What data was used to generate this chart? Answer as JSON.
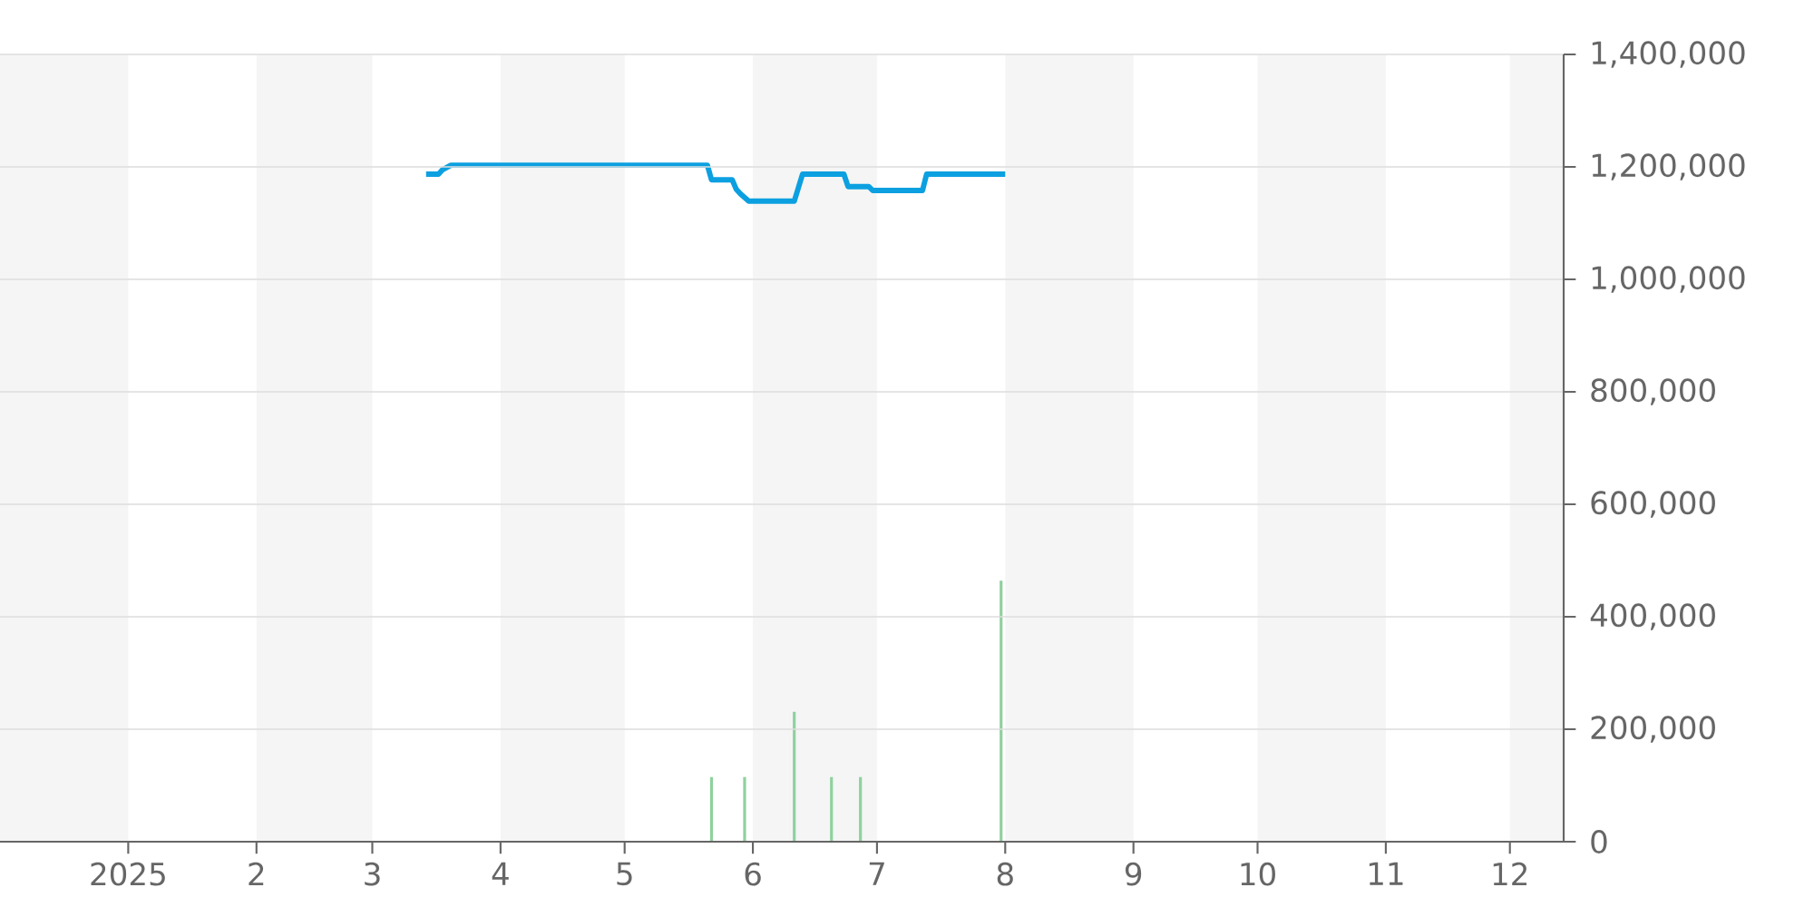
{
  "chart_data": {
    "type": "line",
    "xlim": [
      "2024-12-01",
      "2025-12-14"
    ],
    "ylim": [
      0,
      1400000
    ],
    "xticks": [
      {
        "value": "2025-01-01",
        "label": "2025"
      },
      {
        "value": "2025-02-01",
        "label": "2"
      },
      {
        "value": "2025-03-01",
        "label": "3"
      },
      {
        "value": "2025-04-01",
        "label": "4"
      },
      {
        "value": "2025-05-01",
        "label": "5"
      },
      {
        "value": "2025-06-01",
        "label": "6"
      },
      {
        "value": "2025-07-01",
        "label": "7"
      },
      {
        "value": "2025-08-01",
        "label": "8"
      },
      {
        "value": "2025-09-01",
        "label": "9"
      },
      {
        "value": "2025-10-01",
        "label": "10"
      },
      {
        "value": "2025-11-01",
        "label": "11"
      },
      {
        "value": "2025-12-01",
        "label": "12"
      }
    ],
    "yticks": [
      {
        "value": 0,
        "label": "0"
      },
      {
        "value": 200000,
        "label": "200,000"
      },
      {
        "value": 400000,
        "label": "400,000"
      },
      {
        "value": 600000,
        "label": "600,000"
      },
      {
        "value": 800000,
        "label": "800,000"
      },
      {
        "value": 1000000,
        "label": "1,000,000"
      },
      {
        "value": 1200000,
        "label": "1,200,000"
      },
      {
        "value": 1400000,
        "label": "1,400,000"
      }
    ],
    "grid": "y",
    "bands": [
      {
        "axis": "x",
        "from": "2024-12-01",
        "to": "2025-01-01",
        "color": "#f5f5f5"
      },
      {
        "axis": "x",
        "from": "2025-02-01",
        "to": "2025-03-01",
        "color": "#f5f5f5"
      },
      {
        "axis": "x",
        "from": "2025-04-01",
        "to": "2025-05-01",
        "color": "#f5f5f5"
      },
      {
        "axis": "x",
        "from": "2025-06-01",
        "to": "2025-07-01",
        "color": "#f5f5f5"
      },
      {
        "axis": "x",
        "from": "2025-08-01",
        "to": "2025-09-01",
        "color": "#f5f5f5"
      },
      {
        "axis": "x",
        "from": "2025-10-01",
        "to": "2025-11-01",
        "color": "#f5f5f5"
      },
      {
        "axis": "x",
        "from": "2025-12-01",
        "to": "2025-12-14",
        "color": "#f5f5f5"
      }
    ],
    "series": [
      {
        "type": "bar",
        "color": "#8fd19e",
        "x": [
          "2025-05-22",
          "2025-05-30",
          "2025-06-11",
          "2025-06-20",
          "2025-06-27",
          "2025-07-31"
        ],
        "values": [
          115000,
          115000,
          231000,
          115000,
          115000,
          464000
        ]
      },
      {
        "color": "#0ca0e0",
        "x": [
          "2025-03-14",
          "2025-03-17",
          "2025-03-18",
          "2025-03-20",
          "2025-05-21",
          "2025-05-22",
          "2025-05-27",
          "2025-05-28",
          "2025-05-29",
          "2025-05-31",
          "2025-06-11",
          "2025-06-12",
          "2025-06-13",
          "2025-06-23",
          "2025-06-24",
          "2025-06-29",
          "2025-06-30",
          "2025-07-12",
          "2025-07-13",
          "2025-08-01"
        ],
        "values": [
          1187000,
          1187000,
          1195000,
          1203000,
          1203000,
          1177000,
          1177000,
          1160000,
          1152000,
          1139000,
          1139000,
          1163000,
          1187000,
          1187000,
          1165000,
          1165000,
          1158000,
          1158000,
          1187000,
          1187000
        ]
      }
    ]
  }
}
